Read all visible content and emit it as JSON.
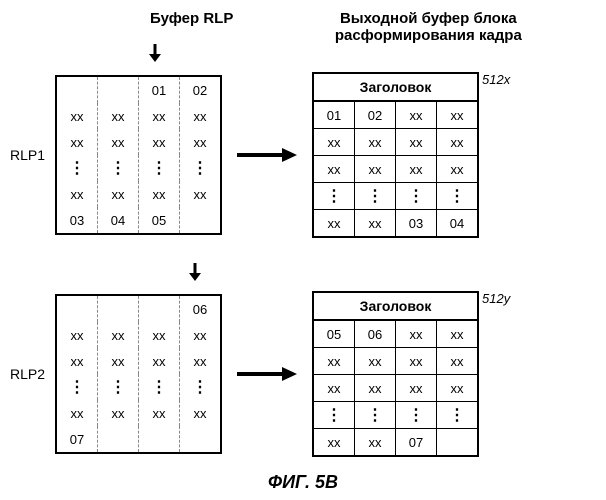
{
  "header_left": "Буфер RLP",
  "header_right": "Выходной буфер блока расформирования кадра",
  "rlp1_label": "RLP1",
  "rlp2_label": "RLP2",
  "table_header": "Заголовок",
  "ref1": "512x",
  "ref2": "512y",
  "fig_label": "ФИГ. 5В",
  "rlp1_buffer": [
    [
      "",
      "",
      "01",
      "02"
    ],
    [
      "xx",
      "xx",
      "xx",
      "xx"
    ],
    [
      "xx",
      "xx",
      "xx",
      "xx"
    ],
    [
      "⋮",
      "⋮",
      "⋮",
      "⋮"
    ],
    [
      "xx",
      "xx",
      "xx",
      "xx"
    ],
    [
      "03",
      "04",
      "05",
      ""
    ]
  ],
  "rlp1_output": [
    [
      "01",
      "02",
      "xx",
      "xx"
    ],
    [
      "xx",
      "xx",
      "xx",
      "xx"
    ],
    [
      "xx",
      "xx",
      "xx",
      "xx"
    ],
    [
      "⋮",
      "⋮",
      "⋮",
      "⋮"
    ],
    [
      "xx",
      "xx",
      "03",
      "04"
    ]
  ],
  "rlp2_buffer": [
    [
      "",
      "",
      "",
      "06"
    ],
    [
      "xx",
      "xx",
      "xx",
      "xx"
    ],
    [
      "xx",
      "xx",
      "xx",
      "xx"
    ],
    [
      "⋮",
      "⋮",
      "⋮",
      "⋮"
    ],
    [
      "xx",
      "xx",
      "xx",
      "xx"
    ],
    [
      "07",
      "",
      "",
      ""
    ]
  ],
  "rlp2_output": [
    [
      "05",
      "06",
      "xx",
      "xx"
    ],
    [
      "xx",
      "xx",
      "xx",
      "xx"
    ],
    [
      "xx",
      "xx",
      "xx",
      "xx"
    ],
    [
      "⋮",
      "⋮",
      "⋮",
      "⋮"
    ],
    [
      "xx",
      "xx",
      "07",
      ""
    ]
  ],
  "arrow1_col": 2,
  "arrow2_col": 3
}
